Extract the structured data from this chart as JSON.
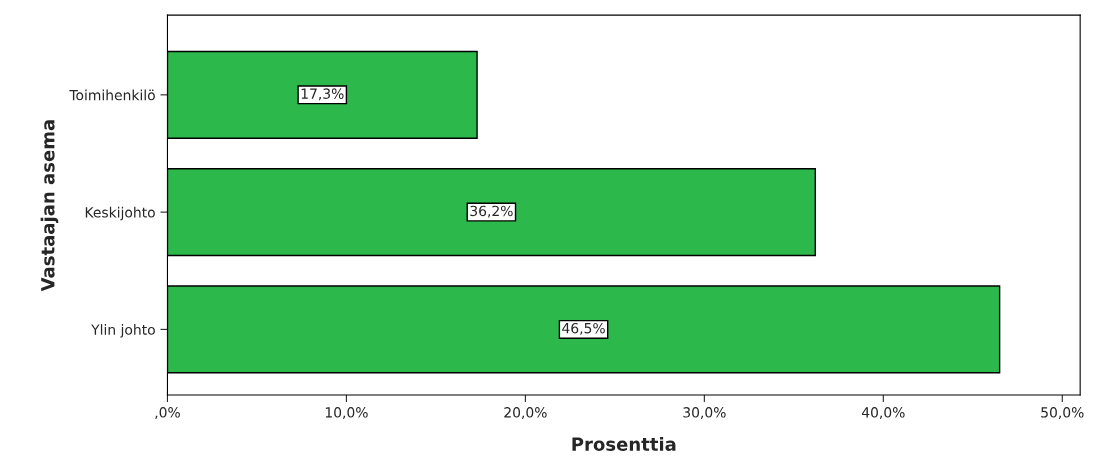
{
  "chart_data": {
    "type": "bar",
    "orientation": "horizontal",
    "ylabel": "Vastaajan asema",
    "xlabel": "Prosenttia",
    "categories": [
      "Toimihenkilö",
      "Keskijohto",
      "Ylin johto"
    ],
    "values": [
      17.3,
      36.2,
      46.5
    ],
    "color": "#2db84b",
    "value_labels": [
      "17,3%",
      "36,2%",
      "46,5%"
    ],
    "xlim": [
      0,
      51
    ],
    "xticks": [
      {
        "value": 0,
        "label": ",0%"
      },
      {
        "value": 10,
        "label": "10,0%"
      },
      {
        "value": 20,
        "label": "20,0%"
      },
      {
        "value": 30,
        "label": "30,0%"
      },
      {
        "value": 40,
        "label": "40,0%"
      },
      {
        "value": 50,
        "label": "50,0%"
      }
    ],
    "grid": false,
    "legend": false
  }
}
